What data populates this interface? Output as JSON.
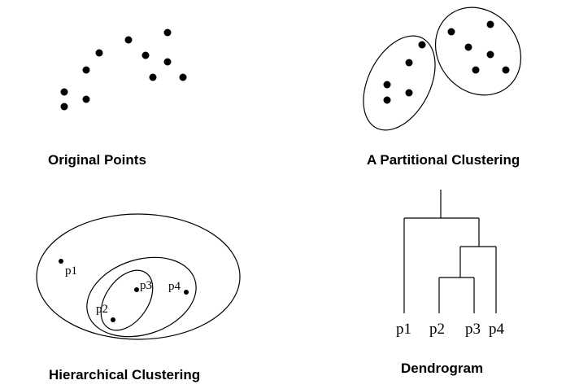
{
  "panels": {
    "original": {
      "caption": "Original Points"
    },
    "partitional": {
      "caption": "A Partitional  Clustering"
    },
    "hierarchical": {
      "caption": "Hierarchical  Clustering",
      "point_labels": [
        "p1",
        "p2",
        "p3",
        "p4"
      ]
    },
    "dendrogram": {
      "caption": "Dendrogram",
      "leaf_labels": [
        "p1",
        "p2",
        "p3",
        "p4"
      ],
      "merge_order": [
        [
          "p2",
          "p3"
        ],
        [
          "p2p3",
          "p4"
        ],
        [
          "p1",
          "p2p3p4"
        ]
      ]
    }
  },
  "colors": {
    "ink": "#000000",
    "background": "#ffffff"
  }
}
